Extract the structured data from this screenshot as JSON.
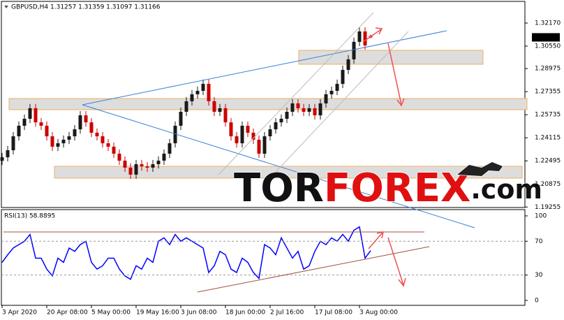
{
  "header": "GBPUSD,H4  1.31257 1.31359 1.31097 1.31166",
  "logo": [
    "TOR",
    "FOREX",
    ".com"
  ],
  "chart_data": [
    {
      "type": "candlestick",
      "categories": [
        "3 Apr 2020",
        null,
        null,
        null,
        null,
        null,
        null,
        null,
        "20 Apr 08:00",
        null,
        null,
        null,
        null,
        null,
        null,
        null,
        "5 May 00:00",
        null,
        null,
        null,
        null,
        null,
        null,
        null,
        "19 May 16:00",
        null,
        null,
        null,
        null,
        null,
        null,
        null,
        "3 Jun 08:00",
        null,
        null,
        null,
        null,
        null,
        null,
        null,
        "18 Jun 00:00",
        null,
        null,
        null,
        null,
        null,
        null,
        null,
        "2 Jul 16:00",
        null,
        null,
        null,
        null,
        null,
        null,
        null,
        "17 Jul 08:00",
        null,
        null,
        null,
        null,
        null,
        null,
        null,
        "3 Aug 00:00",
        null,
        null
      ],
      "open": [
        1.225,
        1.2275,
        1.2324,
        1.2422,
        1.2496,
        1.2545,
        1.2619,
        1.252,
        1.2496,
        1.2422,
        1.2349,
        1.2373,
        1.2398,
        1.2422,
        1.2471,
        1.2569,
        1.252,
        1.2447,
        1.2422,
        1.2373,
        1.2349,
        1.23,
        1.2251,
        1.2202,
        1.2153,
        1.2226,
        1.2211,
        1.2202,
        1.2226,
        1.2251,
        1.23,
        1.2373,
        1.2496,
        1.2594,
        1.2668,
        1.2717,
        1.2741,
        1.279,
        1.2668,
        1.2594,
        1.2619,
        1.252,
        1.2422,
        1.2373,
        1.2496,
        1.2447,
        1.2398,
        1.23,
        1.2422,
        1.2471,
        1.252,
        1.2545,
        1.2594,
        1.2653,
        1.2619,
        1.2594,
        1.2619,
        1.2569,
        1.2653,
        1.2717,
        1.2741,
        1.279,
        1.2888,
        1.2962,
        1.3085,
        1.3158,
        1.31257
      ],
      "high": [
        1.2305,
        1.2354,
        1.2452,
        1.2526,
        1.2575,
        1.2649,
        1.2649,
        1.255,
        1.2526,
        1.2452,
        1.2403,
        1.2428,
        1.2452,
        1.2501,
        1.2599,
        1.2599,
        1.255,
        1.2477,
        1.2452,
        1.2403,
        1.2379,
        1.233,
        1.2281,
        1.2232,
        1.2256,
        1.2256,
        1.2241,
        1.2256,
        1.2281,
        1.233,
        1.2403,
        1.2526,
        1.2624,
        1.2698,
        1.2747,
        1.2771,
        1.282,
        1.282,
        1.2698,
        1.2649,
        1.2649,
        1.255,
        1.2452,
        1.2526,
        1.2526,
        1.2477,
        1.2428,
        1.2452,
        1.2501,
        1.255,
        1.2575,
        1.2624,
        1.2683,
        1.2683,
        1.2649,
        1.2649,
        1.2649,
        1.2683,
        1.2747,
        1.2771,
        1.282,
        1.2918,
        1.2992,
        1.3115,
        1.3188,
        1.3188,
        1.31359
      ],
      "low": [
        1.222,
        1.2245,
        1.2294,
        1.2392,
        1.2466,
        1.2515,
        1.249,
        1.2466,
        1.2392,
        1.2319,
        1.2319,
        1.2343,
        1.2368,
        1.2392,
        1.2441,
        1.249,
        1.2417,
        1.2392,
        1.2343,
        1.2319,
        1.227,
        1.2221,
        1.2172,
        1.2123,
        1.2123,
        1.2181,
        1.2172,
        1.2172,
        1.2196,
        1.2221,
        1.227,
        1.2343,
        1.2466,
        1.2564,
        1.2638,
        1.2687,
        1.2711,
        1.2638,
        1.2564,
        1.2564,
        1.249,
        1.2392,
        1.2343,
        1.2343,
        1.2417,
        1.2368,
        1.227,
        1.227,
        1.2392,
        1.2441,
        1.249,
        1.2515,
        1.2564,
        1.2589,
        1.2564,
        1.2564,
        1.2539,
        1.2539,
        1.2623,
        1.2687,
        1.2711,
        1.276,
        1.2858,
        1.2932,
        1.3055,
        1.303,
        1.31097
      ],
      "close": [
        1.2275,
        1.2324,
        1.2422,
        1.2496,
        1.2545,
        1.2619,
        1.252,
        1.2496,
        1.2422,
        1.2349,
        1.2373,
        1.2398,
        1.2422,
        1.2471,
        1.2569,
        1.252,
        1.2447,
        1.2422,
        1.2373,
        1.2349,
        1.23,
        1.2251,
        1.2202,
        1.2153,
        1.2226,
        1.2211,
        1.2202,
        1.2226,
        1.2251,
        1.23,
        1.2373,
        1.2496,
        1.2594,
        1.2668,
        1.2717,
        1.2741,
        1.279,
        1.2668,
        1.2594,
        1.2619,
        1.252,
        1.2422,
        1.2373,
        1.2496,
        1.2447,
        1.2398,
        1.23,
        1.2422,
        1.2471,
        1.252,
        1.2545,
        1.2594,
        1.2653,
        1.2619,
        1.2594,
        1.2619,
        1.2569,
        1.2653,
        1.2717,
        1.2741,
        1.279,
        1.2888,
        1.2962,
        1.3085,
        1.3158,
        1.306,
        1.31166
      ],
      "up_color": "#1a1a1a",
      "down_color": "#cc0000",
      "ylim": [
        1.1922,
        1.3369
      ],
      "yticks": [
        {
          "value": 1.3217,
          "label": "1.32170"
        },
        {
          "value": 1.3055,
          "label": "1.30550"
        },
        1.28975,
        1.27355,
        1.25735,
        1.24115,
        1.22495,
        1.20875,
        1.19255
      ]
    },
    {
      "type": "line",
      "title": "RSI(13) 58.8895",
      "color": "#0000ff",
      "values": [
        45,
        54,
        62,
        66,
        70,
        78,
        50,
        50,
        37,
        29,
        50,
        45,
        62,
        58,
        66,
        70,
        45,
        37,
        41,
        50,
        50,
        37,
        29,
        25,
        41,
        37,
        50,
        45,
        70,
        74,
        66,
        78,
        70,
        74,
        70,
        66,
        62,
        33,
        41,
        58,
        54,
        37,
        33,
        50,
        45,
        33,
        26,
        66,
        62,
        54,
        74,
        62,
        50,
        58,
        37,
        41,
        58,
        70,
        66,
        74,
        70,
        78,
        70,
        83,
        87,
        50,
        58.8895
      ],
      "ylim": [
        -5.8,
        107.4
      ],
      "yticks": [
        100,
        70,
        30,
        0
      ],
      "grid": [
        70,
        30
      ]
    }
  ]
}
